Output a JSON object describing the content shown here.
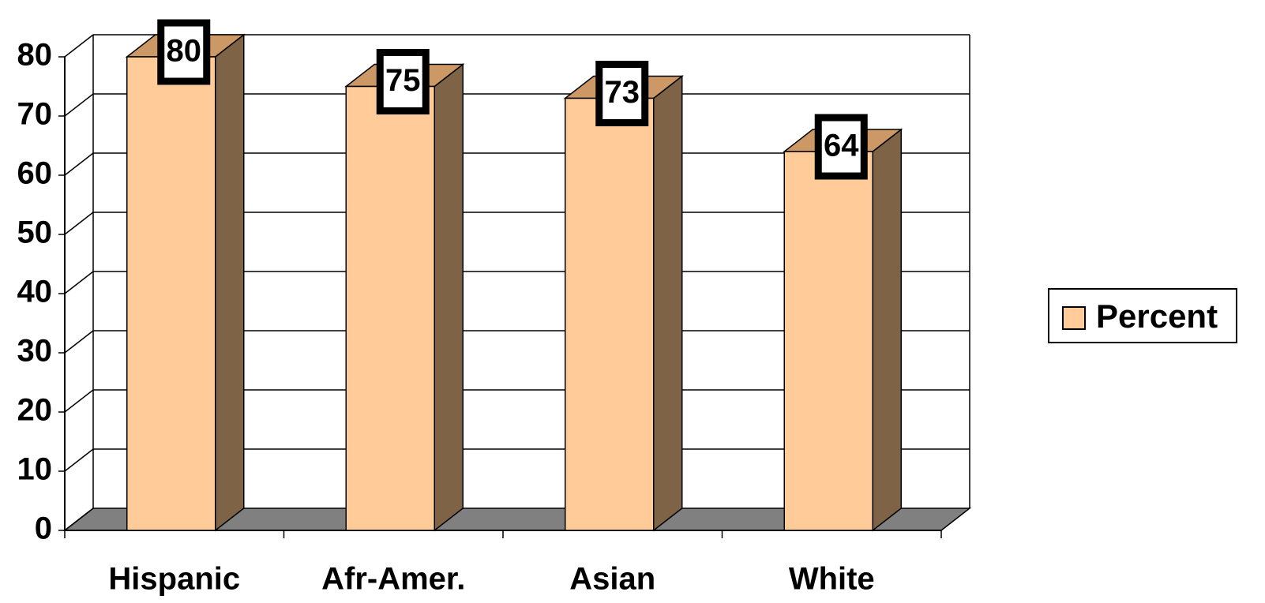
{
  "chart_data": {
    "type": "bar",
    "style": "3d-column",
    "categories": [
      "Hispanic",
      "Afr-Amer.",
      "Asian",
      "White"
    ],
    "series": [
      {
        "name": "Percent",
        "values": [
          80,
          75,
          73,
          64
        ]
      }
    ],
    "data_labels": [
      "80",
      "75",
      "73",
      "64"
    ],
    "yticks": [
      "0",
      "10",
      "20",
      "30",
      "40",
      "50",
      "60",
      "70",
      "80"
    ],
    "ylim": [
      0,
      80
    ],
    "grid": true,
    "legend": {
      "position": "right",
      "entries": [
        "Percent"
      ]
    },
    "colors": {
      "bar_front": "#FFCC99",
      "bar_top": "#CC9966",
      "bar_side": "#7F6347",
      "floor": "#808080",
      "grid": "#000000"
    }
  }
}
